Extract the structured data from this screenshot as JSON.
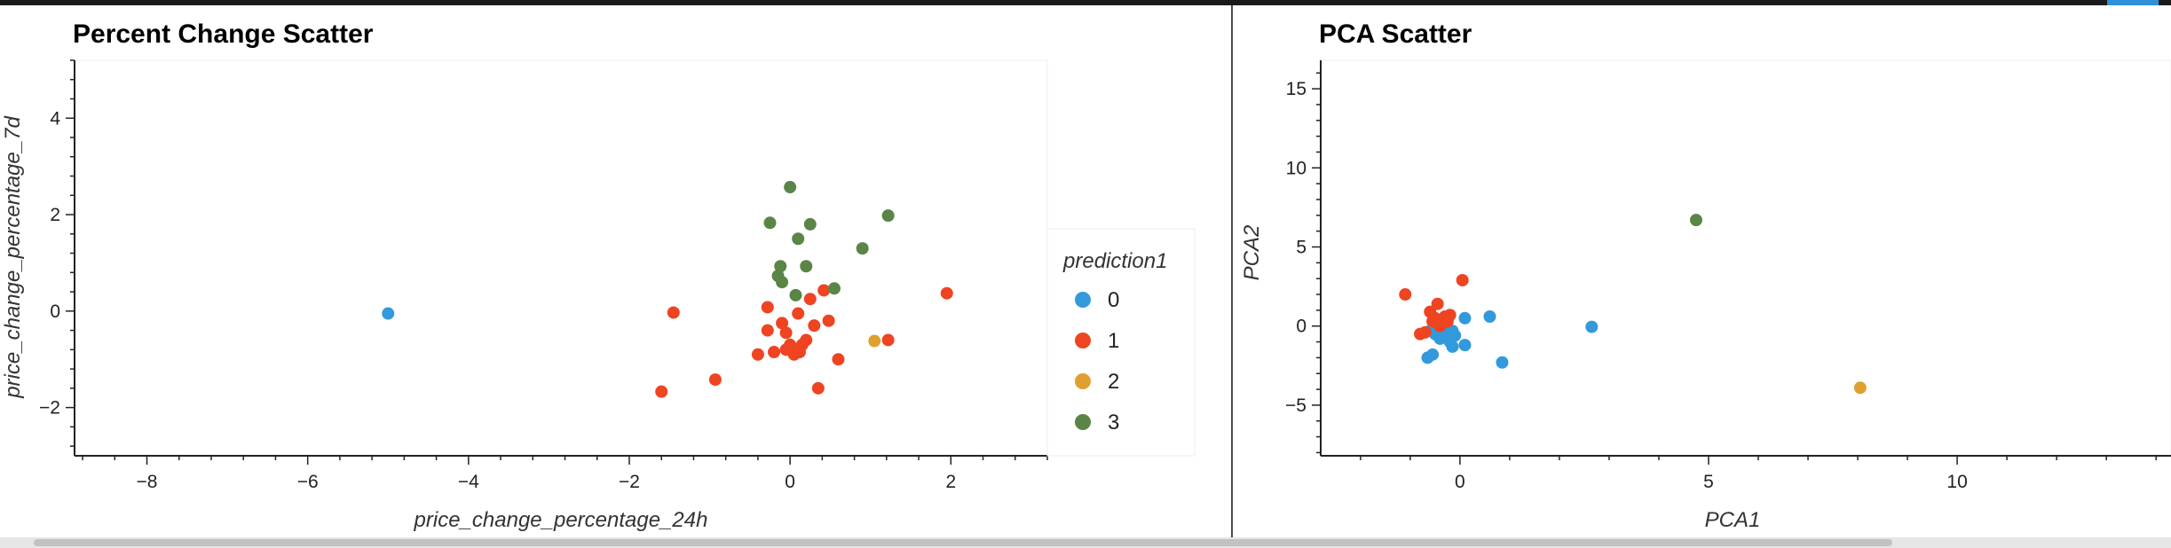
{
  "colors": {
    "0": "#3399dd",
    "1": "#ee4422",
    "2": "#e0a030",
    "3": "#5a8546"
  },
  "chart_data": [
    {
      "type": "scatter",
      "title": "Percent Change Scatter",
      "xlabel": "price_change_percentage_24h",
      "ylabel": "price_change_percentage_7d",
      "xlim": [
        -8.9,
        3.2
      ],
      "ylim": [
        -3.0,
        5.2
      ],
      "xticks": [
        -8,
        -6,
        -4,
        -2,
        0,
        2
      ],
      "yticks": [
        -2,
        0,
        2,
        4
      ],
      "grid": false,
      "legend": {
        "title": "prediction1",
        "placement": "right",
        "entries": [
          "0",
          "1",
          "2",
          "3"
        ]
      },
      "series": [
        {
          "name": "0",
          "points": [
            [
              -5.0,
              -0.05
            ]
          ]
        },
        {
          "name": "1",
          "points": [
            [
              -1.45,
              -0.03
            ],
            [
              -1.6,
              -1.67
            ],
            [
              -0.93,
              -1.42
            ],
            [
              -0.4,
              -0.9
            ],
            [
              -0.28,
              0.08
            ],
            [
              -0.28,
              -0.4
            ],
            [
              -0.2,
              -0.85
            ],
            [
              -0.1,
              -0.25
            ],
            [
              -0.05,
              -0.45
            ],
            [
              -0.05,
              -0.8
            ],
            [
              0.0,
              -0.7
            ],
            [
              0.05,
              -0.9
            ],
            [
              0.1,
              -0.05
            ],
            [
              0.12,
              -0.85
            ],
            [
              0.15,
              -0.7
            ],
            [
              0.2,
              -0.6
            ],
            [
              0.25,
              0.25
            ],
            [
              0.3,
              -0.3
            ],
            [
              0.35,
              -1.6
            ],
            [
              0.42,
              0.43
            ],
            [
              0.48,
              -0.2
            ],
            [
              0.6,
              -1.0
            ],
            [
              1.22,
              -0.6
            ],
            [
              1.95,
              0.37
            ]
          ]
        },
        {
          "name": "2",
          "points": [
            [
              1.05,
              -0.62
            ]
          ]
        },
        {
          "name": "3",
          "points": [
            [
              0.0,
              2.57
            ],
            [
              -0.25,
              1.83
            ],
            [
              0.25,
              1.8
            ],
            [
              0.1,
              1.5
            ],
            [
              -0.12,
              0.93
            ],
            [
              -0.15,
              0.73
            ],
            [
              -0.1,
              0.6
            ],
            [
              0.2,
              0.93
            ],
            [
              0.07,
              0.33
            ],
            [
              0.55,
              0.47
            ],
            [
              0.9,
              1.3
            ],
            [
              1.22,
              1.98
            ]
          ]
        }
      ]
    },
    {
      "type": "scatter",
      "title": "PCA Scatter",
      "xlabel": "PCA1",
      "ylabel": "PCA2",
      "xlim": [
        -2.8,
        14.3
      ],
      "ylim": [
        -8.2,
        16.8
      ],
      "xticks": [
        0,
        5,
        10
      ],
      "yticks": [
        -5,
        0,
        5,
        10,
        15
      ],
      "grid": false,
      "legend": null,
      "series": [
        {
          "name": "0",
          "points": [
            [
              -0.6,
              -0.3
            ],
            [
              -0.5,
              -0.5
            ],
            [
              -0.45,
              -0.6
            ],
            [
              -0.4,
              -0.8
            ],
            [
              -0.35,
              -0.4
            ],
            [
              -0.3,
              -0.7
            ],
            [
              -0.25,
              -0.5
            ],
            [
              -0.2,
              -1.0
            ],
            [
              -0.15,
              -0.3
            ],
            [
              -0.1,
              -0.6
            ],
            [
              -0.5,
              -0.2
            ],
            [
              -0.4,
              -0.1
            ],
            [
              -0.3,
              -0.2
            ],
            [
              -0.15,
              -1.3
            ],
            [
              -0.65,
              -2.0
            ],
            [
              -0.55,
              -1.8
            ],
            [
              0.1,
              -1.2
            ],
            [
              0.1,
              0.5
            ],
            [
              0.6,
              0.6
            ],
            [
              0.85,
              -2.3
            ],
            [
              2.65,
              -0.05
            ]
          ]
        },
        {
          "name": "1",
          "points": [
            [
              -1.1,
              2.0
            ],
            [
              -0.8,
              -0.5
            ],
            [
              -0.7,
              -0.4
            ],
            [
              -0.6,
              0.9
            ],
            [
              -0.55,
              0.3
            ],
            [
              -0.5,
              0.5
            ],
            [
              -0.45,
              1.4
            ],
            [
              -0.4,
              0.0
            ],
            [
              -0.35,
              0.4
            ],
            [
              -0.3,
              0.6
            ],
            [
              -0.25,
              0.3
            ],
            [
              -0.2,
              0.7
            ],
            [
              0.05,
              2.9
            ]
          ]
        },
        {
          "name": "2",
          "points": [
            [
              8.05,
              -3.9
            ]
          ]
        },
        {
          "name": "3",
          "points": [
            [
              4.75,
              6.7
            ]
          ]
        }
      ]
    }
  ]
}
